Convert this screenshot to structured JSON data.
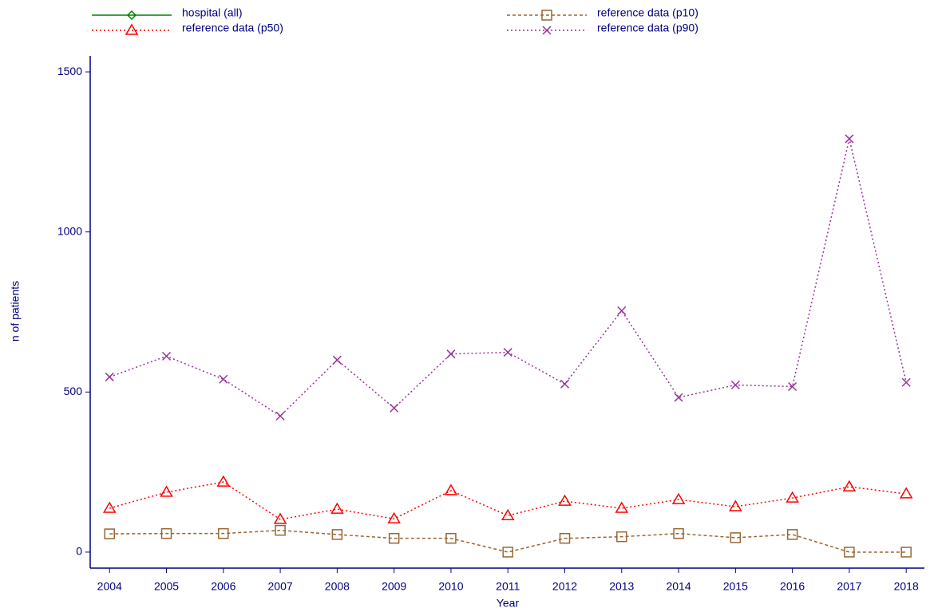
{
  "chart_data": {
    "type": "line",
    "xlabel": "Year",
    "ylabel": "n of patients",
    "x": [
      2004,
      2005,
      2006,
      2007,
      2008,
      2009,
      2010,
      2011,
      2012,
      2013,
      2014,
      2015,
      2016,
      2017,
      2018
    ],
    "xlim": [
      2003.66,
      2018.32
    ],
    "xticks": [
      2004,
      2005,
      2006,
      2007,
      2008,
      2009,
      2010,
      2011,
      2012,
      2013,
      2014,
      2015,
      2016,
      2017,
      2018
    ],
    "ylim": [
      -50,
      1550
    ],
    "yticks": [
      0,
      500,
      1000,
      1500
    ],
    "grid": false,
    "series": [
      {
        "name": "hospital (all)",
        "color": "#008000",
        "marker": "diamond",
        "dash": "solid",
        "values": [
          null,
          null,
          null,
          null,
          null,
          null,
          null,
          null,
          null,
          null,
          null,
          null,
          null,
          null,
          null
        ]
      },
      {
        "name": "reference data (p10)",
        "color": "#996633",
        "marker": "square",
        "dash": "dashed",
        "values": [
          57,
          58,
          58,
          68,
          55,
          43,
          43,
          0,
          43,
          48,
          58,
          45,
          55,
          0,
          0
        ]
      },
      {
        "name": "reference data (p50)",
        "color": "#ff0000",
        "marker": "triangle",
        "dash": "dotted",
        "values": [
          137,
          187,
          219,
          102,
          134,
          104,
          192,
          114,
          159,
          137,
          164,
          142,
          169,
          204,
          182
        ]
      },
      {
        "name": "reference data (p90)",
        "color": "#993399",
        "marker": "x",
        "dash": "dotted",
        "values": [
          547,
          612,
          540,
          425,
          600,
          450,
          619,
          624,
          525,
          754,
          483,
          522,
          517,
          1291,
          530
        ]
      }
    ]
  }
}
